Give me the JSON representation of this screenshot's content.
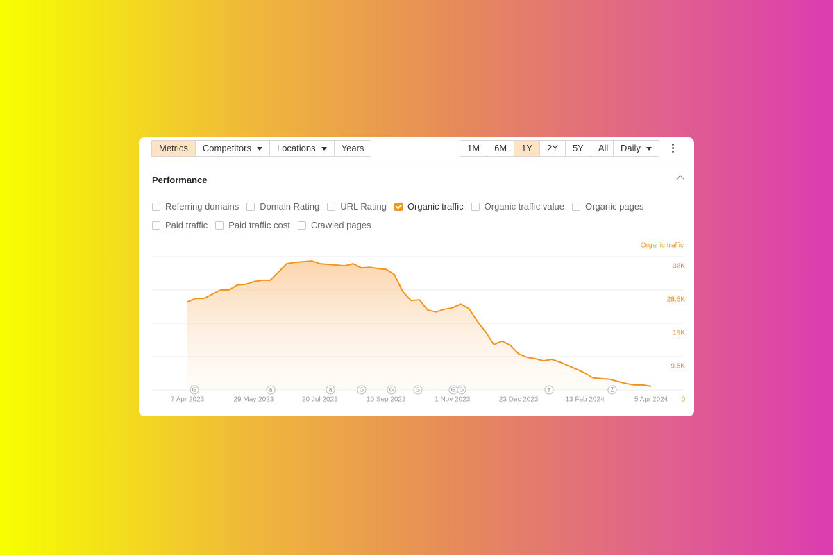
{
  "toolbar": {
    "tabs": [
      "Metrics",
      "Competitors",
      "Locations",
      "Years"
    ],
    "dropdown_tabs": [
      1,
      2
    ],
    "active_tab": 0,
    "ranges": [
      "1M",
      "6M",
      "1Y",
      "2Y",
      "5Y",
      "All"
    ],
    "active_range": 2,
    "interval": "Daily"
  },
  "performance": {
    "title": "Performance",
    "metrics": [
      [
        {
          "label": "Referring domains",
          "checked": false
        },
        {
          "label": "Domain Rating",
          "checked": false
        },
        {
          "label": "URL Rating",
          "checked": false
        },
        {
          "label": "Organic traffic",
          "checked": true
        },
        {
          "label": "Organic traffic value",
          "checked": false
        },
        {
          "label": "Organic pages",
          "checked": false
        }
      ],
      [
        {
          "label": "Paid traffic",
          "checked": false
        },
        {
          "label": "Paid traffic cost",
          "checked": false
        },
        {
          "label": "Crawled pages",
          "checked": false
        }
      ]
    ]
  },
  "chart_data": {
    "type": "line",
    "categories": [
      "7 Apr 2023",
      null,
      null,
      null,
      null,
      null,
      null,
      null,
      "29 May 2023",
      null,
      null,
      null,
      null,
      null,
      null,
      null,
      "20 Jul 2023",
      null,
      null,
      null,
      null,
      null,
      null,
      null,
      "10 Sep 2023",
      null,
      null,
      null,
      null,
      null,
      null,
      null,
      "1 Nov 2023",
      null,
      null,
      null,
      null,
      null,
      null,
      null,
      "23 Dec 2023",
      null,
      null,
      null,
      null,
      null,
      null,
      null,
      "13 Feb 2024",
      null,
      null,
      null,
      null,
      null,
      null,
      null,
      "5 Apr 2024"
    ],
    "series": [
      {
        "name": "Organic traffic",
        "color": "#f0961e",
        "values": [
          25100,
          26100,
          26100,
          27300,
          28500,
          28500,
          29900,
          30100,
          30900,
          31300,
          31300,
          33600,
          36000,
          36400,
          36600,
          36800,
          36000,
          35800,
          35600,
          35400,
          36000,
          34800,
          35000,
          34600,
          34400,
          32900,
          28100,
          25500,
          25700,
          22800,
          22200,
          23000,
          23400,
          24500,
          23200,
          19600,
          16600,
          12900,
          13900,
          12700,
          10300,
          9300,
          8900,
          8300,
          8700,
          7900,
          6900,
          5900,
          4800,
          3400,
          3200,
          3000,
          2400,
          1800,
          1400,
          1400,
          1000
        ]
      }
    ],
    "ylim": [
      0,
      38000
    ],
    "yticks": [
      0,
      {
        "value": 9500,
        "label": "9.5K"
      },
      {
        "value": 19000,
        "label": "19K"
      },
      {
        "value": 28500,
        "label": "28.5K"
      },
      {
        "value": 38000,
        "label": "38K"
      }
    ],
    "grid": true,
    "annotations": [
      "G",
      "a",
      "a",
      "G",
      "G",
      "G",
      "G",
      "G",
      "a",
      "Z"
    ]
  }
}
